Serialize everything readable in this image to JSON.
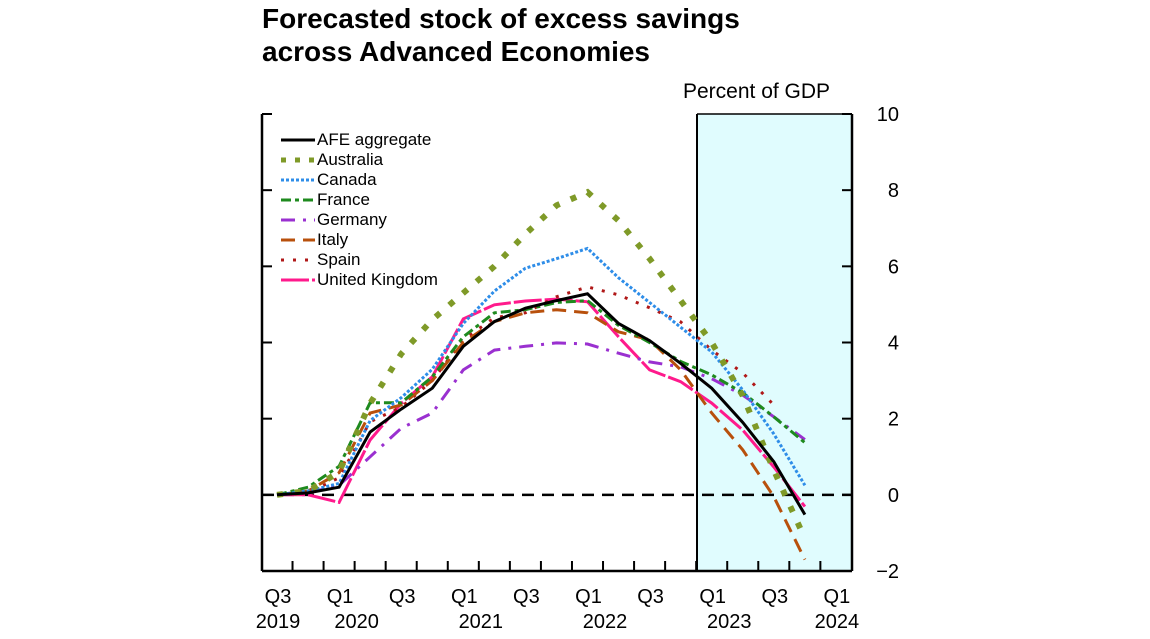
{
  "chart_data": {
    "type": "line",
    "title": "Forecasted stock of excess savings across Advanced Economies",
    "title_lines": [
      "Forecasted stock of excess savings",
      "across Advanced Economies"
    ],
    "ylabel": "Percent of GDP",
    "xlabel": "",
    "ylim": [
      -2,
      10
    ],
    "yticks": [
      10,
      8,
      6,
      4,
      2,
      0,
      -2
    ],
    "x": [
      "Q3 2019",
      "Q4 2019",
      "Q1 2020",
      "Q2 2020",
      "Q3 2020",
      "Q4 2020",
      "Q1 2021",
      "Q2 2021",
      "Q3 2021",
      "Q4 2021",
      "Q1 2022",
      "Q2 2022",
      "Q3 2022",
      "Q4 2022",
      "Q1 2023",
      "Q2 2023",
      "Q3 2023",
      "Q4 2023",
      "Q1 2024"
    ],
    "xtick_labels": [
      {
        "quarter": "Q3",
        "year": "2019",
        "index": 0
      },
      {
        "quarter": "Q1",
        "year": "2020",
        "index": 2
      },
      {
        "quarter": "Q3",
        "year": "",
        "index": 4
      },
      {
        "quarter": "Q1",
        "year": "2021",
        "index": 6
      },
      {
        "quarter": "Q3",
        "year": "",
        "index": 8
      },
      {
        "quarter": "Q1",
        "year": "2022",
        "index": 10
      },
      {
        "quarter": "Q3",
        "year": "",
        "index": 12
      },
      {
        "quarter": "Q1",
        "year": "2023",
        "index": 14
      },
      {
        "quarter": "Q3",
        "year": "",
        "index": 16
      },
      {
        "quarter": "Q1",
        "year": "2024",
        "index": 18
      }
    ],
    "year_label_positions": [
      {
        "year": "2019",
        "index": 0
      },
      {
        "year": "2020",
        "index": 3
      },
      {
        "year": "2021",
        "index": 7
      },
      {
        "year": "2022",
        "index": 11
      },
      {
        "year": "2023",
        "index": 15
      },
      {
        "year": "2024",
        "index": 18
      }
    ],
    "forecast_shading": {
      "start": "Q4 2022 / Q1 2023 boundary",
      "end": "Q1 2024",
      "color": "#e0fcfe"
    },
    "reference_line": {
      "y": 0,
      "style": "dashed"
    },
    "grid": false,
    "legend_position": "top-left",
    "series": [
      {
        "name": "AFE aggregate",
        "color": "#000000",
        "style": "solid",
        "values": [
          0,
          0.05,
          0.2,
          1.65,
          2.25,
          2.8,
          3.9,
          4.55,
          4.9,
          5.1,
          5.28,
          4.5,
          4.05,
          3.45,
          2.8,
          1.9,
          0.87,
          -0.52
        ]
      },
      {
        "name": "Australia",
        "color": "#7f9a28",
        "style": "square-dot",
        "values": [
          0,
          0.1,
          0.6,
          2.4,
          3.7,
          4.6,
          5.3,
          6.0,
          6.85,
          7.6,
          7.95,
          7.2,
          6.2,
          5.1,
          4.0,
          2.6,
          0.65,
          -1.15
        ]
      },
      {
        "name": "Canada",
        "color": "#2e8de8",
        "style": "dotted",
        "values": [
          0,
          0.1,
          0.3,
          1.95,
          2.55,
          3.3,
          4.5,
          5.35,
          5.95,
          6.2,
          6.47,
          5.7,
          5.05,
          4.4,
          3.75,
          2.75,
          1.6,
          0.25
        ]
      },
      {
        "name": "France",
        "color": "#1e8a1e",
        "style": "dash-dot",
        "values": [
          0,
          0.2,
          0.75,
          2.42,
          2.42,
          3.1,
          4.15,
          4.78,
          4.86,
          5.05,
          5.1,
          4.45,
          4.0,
          3.5,
          3.15,
          2.68,
          2.05,
          1.37
        ]
      },
      {
        "name": "Germany",
        "color": "#9a30d0",
        "style": "dash-dot-dot",
        "values": [
          0,
          0.05,
          0.25,
          1.0,
          1.75,
          2.15,
          3.28,
          3.8,
          3.9,
          3.99,
          3.96,
          3.72,
          3.49,
          3.36,
          3.05,
          2.62,
          2.05,
          1.45
        ]
      },
      {
        "name": "Italy",
        "color": "#b8500c",
        "style": "long-dash",
        "values": [
          0,
          0.1,
          0.58,
          2.15,
          2.36,
          3.0,
          4.0,
          4.55,
          4.78,
          4.86,
          4.78,
          4.28,
          4.07,
          3.28,
          2.15,
          1.18,
          -0.05,
          -1.7
        ]
      },
      {
        "name": "Spain",
        "color": "#b01818",
        "style": "sparse-dot",
        "values": [
          0,
          0.05,
          0.45,
          1.92,
          2.3,
          3.0,
          4.07,
          4.65,
          4.78,
          5.2,
          5.46,
          5.25,
          4.91,
          4.54,
          3.8,
          3.2,
          2.36
        ]
      },
      {
        "name": "United Kingdom",
        "color": "#ff1a8c",
        "style": "solid-broken",
        "values": [
          0,
          0.0,
          -0.2,
          1.44,
          2.4,
          3.1,
          4.62,
          4.99,
          5.09,
          5.14,
          5.07,
          4.15,
          3.28,
          2.97,
          2.41,
          1.7,
          0.73,
          -0.31
        ]
      }
    ]
  }
}
